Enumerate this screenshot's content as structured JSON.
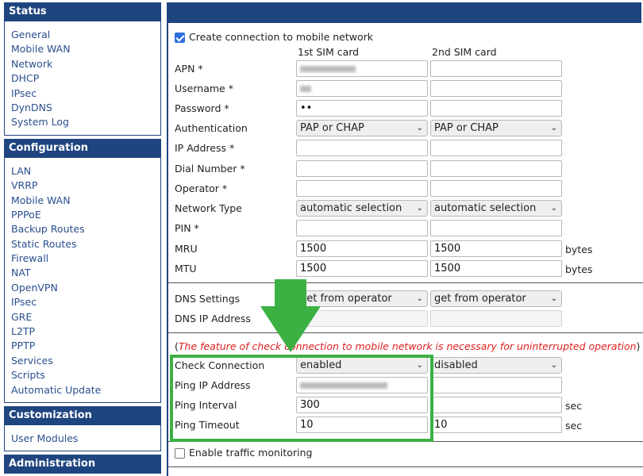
{
  "sidebar": {
    "sections": [
      {
        "title": "Status",
        "items": [
          "General",
          "Mobile WAN",
          "Network",
          "DHCP",
          "IPsec",
          "DynDNS",
          "System Log"
        ]
      },
      {
        "title": "Configuration",
        "items": [
          "LAN",
          "VRRP",
          "Mobile WAN",
          "PPPoE",
          "Backup Routes",
          "Static Routes",
          "Firewall",
          "NAT",
          "OpenVPN",
          "IPsec",
          "GRE",
          "L2TP",
          "PPTP",
          "Services",
          "Scripts",
          "Automatic Update"
        ]
      },
      {
        "title": "Customization",
        "items": [
          "User Modules"
        ]
      },
      {
        "title": "Administration",
        "items": []
      }
    ]
  },
  "form": {
    "create_connection": {
      "label": "Create connection to mobile network",
      "checked": true
    },
    "col1": "1st SIM card",
    "col2": "2nd SIM card",
    "apn": {
      "label": "APN *"
    },
    "username": {
      "label": "Username *"
    },
    "password": {
      "label": "Password *",
      "v1": "••"
    },
    "auth": {
      "label": "Authentication",
      "v1": "PAP or CHAP",
      "v2": "PAP or CHAP"
    },
    "ip": {
      "label": "IP Address *"
    },
    "dial": {
      "label": "Dial Number *"
    },
    "operator": {
      "label": "Operator *"
    },
    "nettype": {
      "label": "Network Type",
      "v1": "automatic selection",
      "v2": "automatic selection"
    },
    "pin": {
      "label": "PIN *"
    },
    "mru": {
      "label": "MRU",
      "v1": "1500",
      "v2": "1500",
      "unit": "bytes"
    },
    "mtu": {
      "label": "MTU",
      "v1": "1500",
      "v2": "1500",
      "unit": "bytes"
    },
    "dns": {
      "label": "DNS Settings",
      "v1": "get from operator",
      "v2": "get from operator"
    },
    "dnsip": {
      "label": "DNS IP Address"
    },
    "note": {
      "open": "(",
      "text": "The feature of check connection to mobile network is necessary for uninterrupted operation",
      "close": ")"
    },
    "check": {
      "label": "Check Connection",
      "v1": "enabled",
      "v2": "disabled"
    },
    "pingip": {
      "label": "Ping IP Address"
    },
    "pinginterval": {
      "label": "Ping Interval",
      "v1": "300",
      "unit": "sec"
    },
    "pingtimeout": {
      "label": "Ping Timeout",
      "v1": "10",
      "v2": "10",
      "unit": "sec"
    },
    "traffic": {
      "label": "Enable traffic monitoring",
      "checked": false
    }
  },
  "colors": {
    "brand": "#1f4580",
    "highlight": "#3cb043",
    "warning": "#e02020"
  }
}
